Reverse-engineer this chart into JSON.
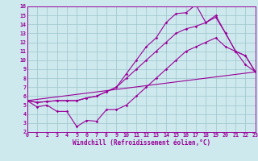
{
  "bg_color": "#cde9ed",
  "line_color": "#990099",
  "grid_color": "#9dc4cc",
  "xlim": [
    0,
    23
  ],
  "ylim": [
    2,
    16
  ],
  "xticks": [
    0,
    1,
    2,
    3,
    4,
    5,
    6,
    7,
    8,
    9,
    10,
    11,
    12,
    13,
    14,
    15,
    16,
    17,
    18,
    19,
    20,
    21,
    22,
    23
  ],
  "yticks": [
    2,
    3,
    4,
    5,
    6,
    7,
    8,
    9,
    10,
    11,
    12,
    13,
    14,
    15,
    16
  ],
  "line1_x": [
    0,
    1,
    2,
    3,
    4,
    5,
    6,
    7,
    8,
    9,
    10,
    11,
    12,
    13,
    14,
    15,
    16,
    17,
    18,
    19,
    20,
    21,
    22,
    23
  ],
  "line1_y": [
    5.5,
    4.8,
    5.0,
    4.3,
    4.3,
    2.6,
    3.3,
    3.2,
    4.5,
    4.5,
    5.0,
    6.0,
    7.0,
    8.0,
    9.0,
    10.0,
    11.0,
    11.5,
    12.0,
    12.5,
    11.5,
    11.0,
    10.5,
    8.7
  ],
  "line2_x": [
    0,
    1,
    2,
    3,
    4,
    5,
    6,
    7,
    8,
    9,
    10,
    11,
    12,
    13,
    14,
    15,
    16,
    17,
    18,
    19,
    20,
    21,
    22,
    23
  ],
  "line2_y": [
    5.5,
    5.3,
    5.4,
    5.5,
    5.5,
    5.5,
    5.8,
    6.0,
    6.5,
    7.0,
    8.0,
    9.0,
    10.0,
    11.0,
    12.0,
    13.0,
    13.5,
    13.8,
    14.2,
    14.8,
    13.0,
    11.0,
    10.5,
    8.7
  ],
  "line3_x": [
    0,
    1,
    2,
    3,
    4,
    5,
    6,
    7,
    8,
    9,
    10,
    11,
    12,
    13,
    14,
    15,
    16,
    17,
    18,
    19,
    20,
    21,
    22,
    23
  ],
  "line3_y": [
    5.5,
    5.3,
    5.4,
    5.5,
    5.5,
    5.5,
    5.8,
    6.0,
    6.5,
    7.0,
    8.5,
    10.0,
    11.5,
    12.5,
    14.2,
    15.2,
    15.3,
    16.2,
    14.2,
    15.0,
    13.0,
    11.0,
    9.5,
    8.7
  ],
  "line4_x": [
    0,
    23
  ],
  "line4_y": [
    5.5,
    8.7
  ],
  "xlabel": "Windchill (Refroidissement éolien,°C)",
  "marker": "D",
  "marker_size": 1.8,
  "line_width": 0.8,
  "tick_fontsize": 4.8,
  "xlabel_fontsize": 5.5
}
